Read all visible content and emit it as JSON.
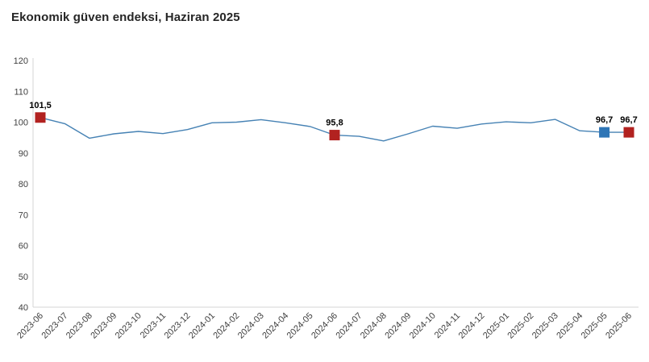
{
  "page": {
    "title": "Ekonomik güven endeksi, Haziran 2025"
  },
  "colors": {
    "background": "#ffffff",
    "title_text": "#262626",
    "axis_line": "#d6d6d6",
    "tick_text": "#3f3f3f",
    "line": "#4682b4",
    "marker_red": "#b22220",
    "marker_blue": "#2e75b6",
    "point_label_text": "#000000"
  },
  "chart_data": {
    "type": "line",
    "title": "Ekonomik güven endeksi, Haziran 2025",
    "x": [
      "2023-06",
      "2023-07",
      "2023-08",
      "2023-09",
      "2023-10",
      "2023-11",
      "2023-12",
      "2024-01",
      "2024-02",
      "2024-03",
      "2024-04",
      "2024-05",
      "2024-06",
      "2024-07",
      "2024-08",
      "2024-09",
      "2024-10",
      "2024-11",
      "2024-12",
      "2025-01",
      "2025-02",
      "2025-03",
      "2025-04",
      "2025-05",
      "2025-06"
    ],
    "series": [
      {
        "name": "Ekonomik güven endeksi",
        "values": [
          101.5,
          99.5,
          94.8,
          96.2,
          97.0,
          96.3,
          97.6,
          99.8,
          100.0,
          100.8,
          99.8,
          98.6,
          95.8,
          95.4,
          93.9,
          96.2,
          98.7,
          98.0,
          99.4,
          100.1,
          99.8,
          100.9,
          97.2,
          96.7,
          96.7
        ]
      }
    ],
    "xlabel": "",
    "ylabel": "",
    "ylim": [
      40,
      120
    ],
    "yticks": [
      40,
      50,
      60,
      70,
      80,
      90,
      100,
      110,
      120
    ],
    "grid": false,
    "legend": "none",
    "x_label_rotation": -45,
    "labeled_points": [
      {
        "x": "2023-06",
        "value": 101.5,
        "label": "101,5",
        "marker": "square",
        "color_key": "marker_red"
      },
      {
        "x": "2024-06",
        "value": 95.8,
        "label": "95,8",
        "marker": "square",
        "color_key": "marker_red"
      },
      {
        "x": "2025-05",
        "value": 96.7,
        "label": "96,7",
        "marker": "square",
        "color_key": "marker_blue"
      },
      {
        "x": "2025-06",
        "value": 96.7,
        "label": "96,7",
        "marker": "square",
        "color_key": "marker_red"
      }
    ]
  }
}
